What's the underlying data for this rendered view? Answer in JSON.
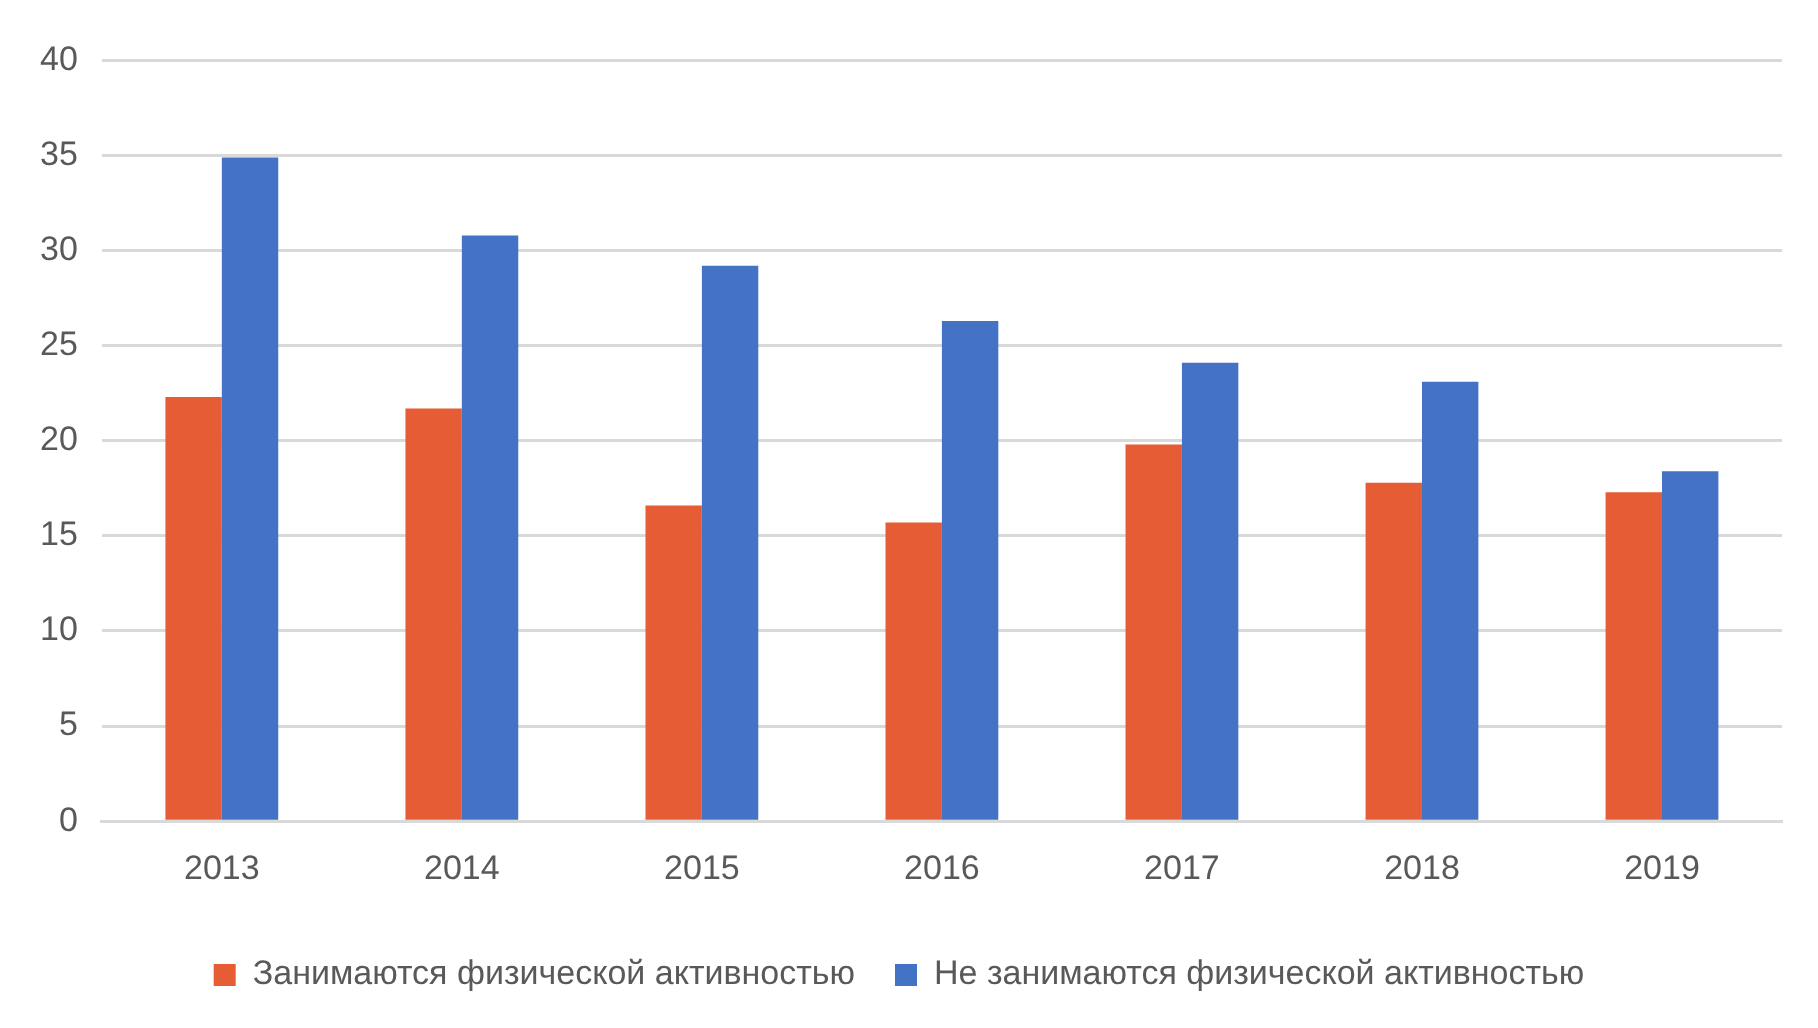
{
  "chart_data": {
    "type": "bar",
    "categories": [
      "2013",
      "2014",
      "2015",
      "2016",
      "2017",
      "2018",
      "2019"
    ],
    "series": [
      {
        "name": "Занимаются физической активностью",
        "color": "#e65c35",
        "values": [
          22.3,
          21.7,
          16.6,
          15.7,
          19.8,
          17.8,
          17.3
        ]
      },
      {
        "name": "Не занимаются физической активностью",
        "color": "#4472c4",
        "values": [
          34.9,
          30.8,
          29.2,
          26.3,
          24.1,
          23.1,
          18.4
        ]
      }
    ],
    "ylim": [
      0,
      40
    ],
    "yticks": [
      0,
      5,
      10,
      15,
      20,
      25,
      30,
      35,
      40
    ],
    "grid": "y",
    "legend": "bottom"
  }
}
